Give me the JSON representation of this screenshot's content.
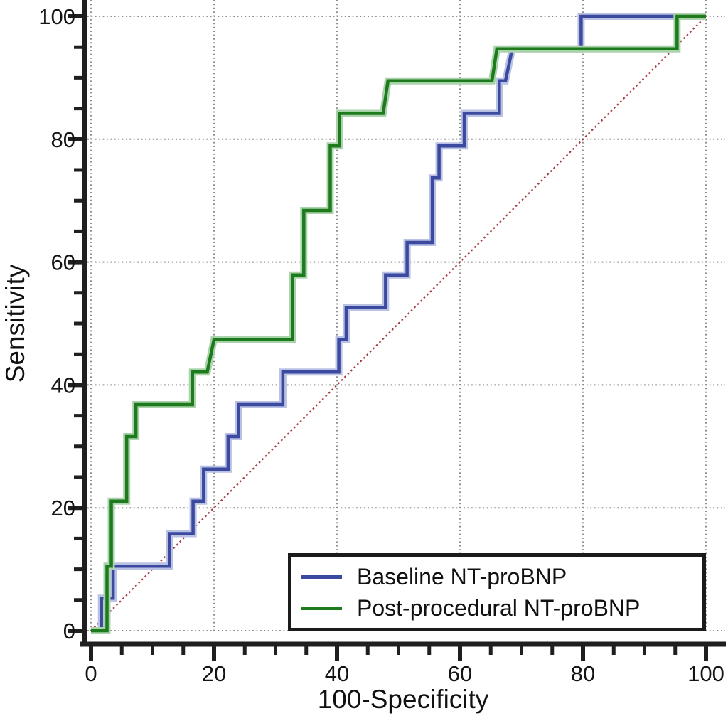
{
  "page": {
    "background": "#ffffff"
  },
  "chart_data": {
    "type": "line",
    "subtype": "roc-step-curves",
    "title": "",
    "xlabel": "100-Specificity",
    "ylabel": "Sensitivity",
    "xlim": [
      0,
      100
    ],
    "ylim": [
      0,
      100
    ],
    "x_major_ticks": [
      0,
      20,
      40,
      60,
      80,
      100
    ],
    "y_major_ticks": [
      0,
      20,
      40,
      60,
      80,
      100
    ],
    "minor_tick_step": 5,
    "grid": "dotted gray lines at major ticks, both axes",
    "axis_color": "#1f1f1f",
    "grid_color": "#8f8f8f",
    "tick_label_color": "#141414",
    "legend_position": "bottom-right",
    "reference_line": {
      "name": "chance-diagonal",
      "from": [
        0,
        0
      ],
      "to": [
        100,
        100
      ],
      "color": "#a8393e",
      "style": "dotted"
    },
    "series": [
      {
        "name": "Baseline NT-proBNP",
        "color": "#3b4a9e",
        "halo_color": "#b9c1e4",
        "points": [
          [
            0,
            0
          ],
          [
            1.7,
            0
          ],
          [
            1.7,
            5.3
          ],
          [
            3.6,
            5.3
          ],
          [
            3.6,
            10.5
          ],
          [
            12.8,
            10.5
          ],
          [
            12.8,
            15.8
          ],
          [
            16.6,
            15.8
          ],
          [
            16.6,
            21.1
          ],
          [
            18.3,
            21.1
          ],
          [
            18.3,
            26.3
          ],
          [
            22.3,
            26.3
          ],
          [
            22.3,
            31.6
          ],
          [
            24,
            31.6
          ],
          [
            24,
            36.8
          ],
          [
            31.2,
            36.8
          ],
          [
            31.2,
            42.1
          ],
          [
            40.3,
            42.1
          ],
          [
            40.3,
            47.4
          ],
          [
            41.5,
            47.4
          ],
          [
            41.5,
            52.6
          ],
          [
            47.9,
            52.6
          ],
          [
            47.9,
            57.9
          ],
          [
            51.4,
            57.9
          ],
          [
            51.4,
            63.2
          ],
          [
            55.5,
            63.2
          ],
          [
            55.5,
            73.7
          ],
          [
            56.6,
            73.7
          ],
          [
            56.6,
            78.9
          ],
          [
            60.7,
            78.9
          ],
          [
            60.7,
            84.2
          ],
          [
            66.4,
            84.2
          ],
          [
            66.4,
            89.5
          ],
          [
            67.4,
            89.5
          ],
          [
            68.5,
            94.7
          ],
          [
            79.7,
            94.7
          ],
          [
            79.7,
            100
          ],
          [
            100,
            100
          ]
        ]
      },
      {
        "name": "Post-procedural NT-proBNP",
        "color": "#1d7a1d",
        "halo_color": "#abd3ab",
        "points": [
          [
            0,
            0
          ],
          [
            2.6,
            0
          ],
          [
            2.6,
            10.5
          ],
          [
            3.3,
            10.5
          ],
          [
            3.3,
            21.1
          ],
          [
            5.8,
            21.1
          ],
          [
            5.8,
            31.6
          ],
          [
            7.3,
            31.6
          ],
          [
            7.3,
            36.8
          ],
          [
            16.5,
            36.8
          ],
          [
            16.5,
            42.1
          ],
          [
            18.9,
            42.1
          ],
          [
            20,
            47.4
          ],
          [
            32.8,
            47.4
          ],
          [
            32.8,
            57.9
          ],
          [
            34.6,
            57.9
          ],
          [
            34.6,
            68.4
          ],
          [
            38.9,
            68.4
          ],
          [
            38.9,
            78.9
          ],
          [
            40.4,
            78.9
          ],
          [
            40.4,
            84.2
          ],
          [
            47.5,
            84.2
          ],
          [
            48.3,
            89.5
          ],
          [
            65.2,
            89.5
          ],
          [
            66,
            94.7
          ],
          [
            95.3,
            94.7
          ],
          [
            95.3,
            100
          ],
          [
            100,
            100
          ]
        ]
      }
    ]
  }
}
